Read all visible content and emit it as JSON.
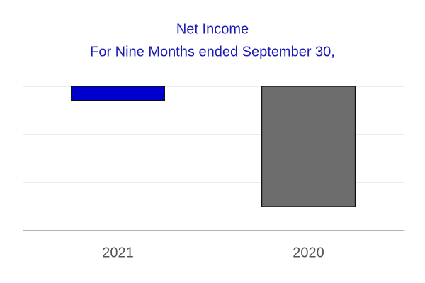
{
  "chart_data": {
    "type": "bar",
    "title": "Net Income",
    "subtitle": "For Nine Months ended September 30,",
    "categories": [
      "2021",
      "2020"
    ],
    "values": [
      -0.3,
      -2.5
    ],
    "colors": [
      "#0000cc",
      "#6d6d6d"
    ],
    "ylim": [
      -3,
      0
    ],
    "yticks": [
      -2,
      -1,
      0
    ],
    "grid": true
  }
}
